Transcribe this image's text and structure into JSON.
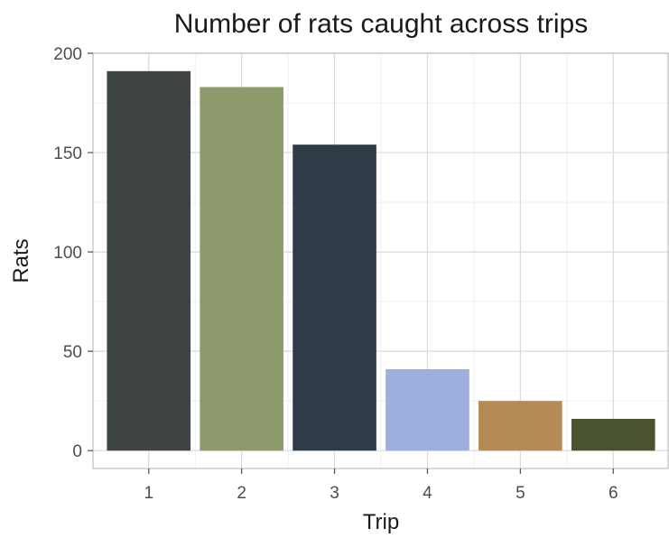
{
  "chart_data": {
    "type": "bar",
    "title": "Number of rats caught across trips",
    "xlabel": "Trip",
    "ylabel": "Rats",
    "categories": [
      "1",
      "2",
      "3",
      "4",
      "5",
      "6"
    ],
    "values": [
      191,
      183,
      154,
      41,
      25,
      16
    ],
    "colors": [
      "#3e4444",
      "#8d9a6b",
      "#2f3b47",
      "#9db0dd",
      "#b48b57",
      "#4a5331"
    ],
    "ylim": [
      -9,
      200
    ],
    "yticks": [
      0,
      50,
      100,
      150,
      200
    ],
    "grid": true,
    "legend": "none"
  }
}
